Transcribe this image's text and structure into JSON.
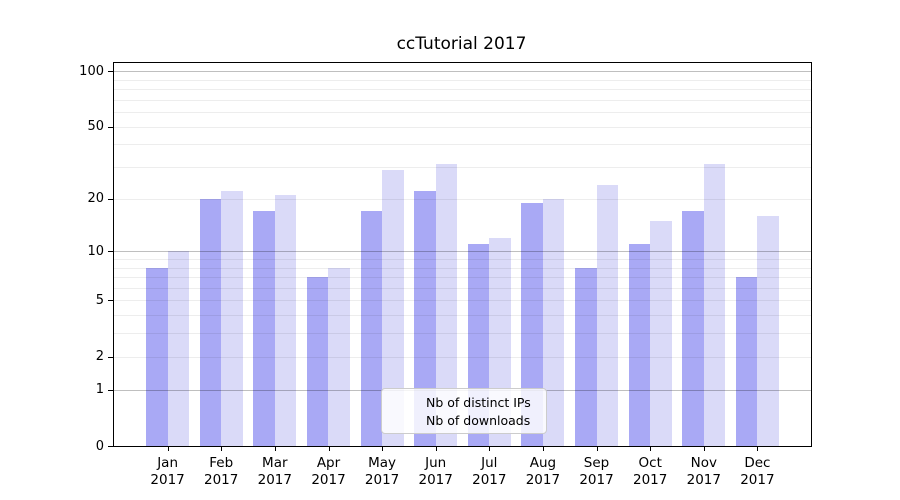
{
  "title": "ccTutorial 2017",
  "background_color": "#ffffff",
  "chart_data": {
    "type": "bar",
    "title": "ccTutorial 2017",
    "categories": [
      "Jan",
      "Feb",
      "Mar",
      "Apr",
      "May",
      "Jun",
      "Jul",
      "Aug",
      "Sep",
      "Oct",
      "Nov",
      "Dec"
    ],
    "year_label": "2017",
    "series": [
      {
        "name": "Nb of distinct IPs",
        "color": "#a9a9f5",
        "values": [
          8,
          20,
          17,
          7,
          17,
          22,
          11,
          19,
          8,
          11,
          17,
          7
        ]
      },
      {
        "name": "Nb of downloads",
        "color": "#dadaf8",
        "values": [
          10,
          22,
          21,
          8,
          29,
          31,
          12,
          20,
          24,
          15,
          31,
          16
        ]
      }
    ],
    "y_axis": {
      "scale": "log1p",
      "tick_labels": [
        0,
        1,
        2,
        5,
        10,
        20,
        50,
        100
      ],
      "major_grid": [
        1,
        10,
        100
      ],
      "minor_grid": [
        2,
        3,
        4,
        5,
        6,
        7,
        8,
        9,
        20,
        30,
        40,
        50,
        60,
        70,
        80,
        90
      ],
      "range_max": 110,
      "grid": "on"
    },
    "x_axis": {
      "label_line1": [
        "Jan",
        "Feb",
        "Mar",
        "Apr",
        "May",
        "Jun",
        "Jul",
        "Aug",
        "Sep",
        "Oct",
        "Nov",
        "Dec"
      ],
      "label_line2": "2017"
    },
    "legend": {
      "position": "lower center",
      "entries": [
        "Nb of distinct IPs",
        "Nb of downloads"
      ]
    }
  }
}
